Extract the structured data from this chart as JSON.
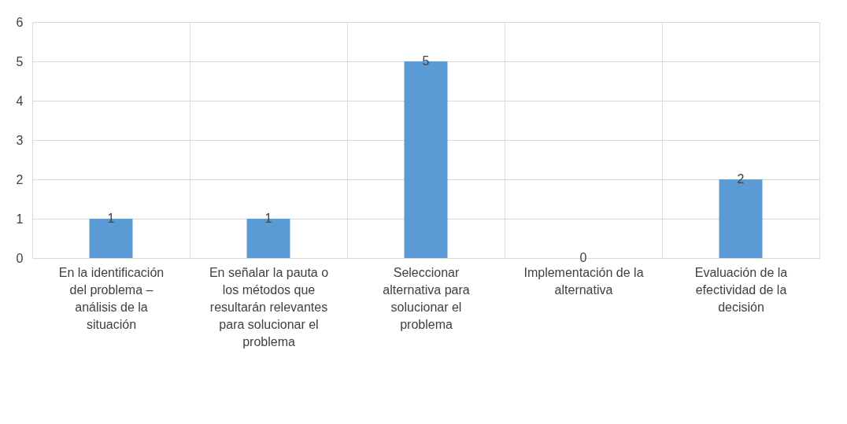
{
  "chart_data": {
    "type": "bar",
    "categories": [
      "En la identificación del problema – análisis de la situación",
      "En señalar la pauta o los métodos que resultarán relevantes para solucionar el problema",
      "Seleccionar alternativa para solucionar el problema",
      "Implementación de la alternativa",
      "Evaluación de la efectividad de la decisión"
    ],
    "values": [
      1,
      1,
      5,
      0,
      2
    ],
    "color": "#5b9bd5",
    "ylim": [
      0,
      6
    ],
    "yticks": [
      0,
      1,
      2,
      3,
      4,
      5,
      6
    ],
    "grid": true,
    "data_labels": true
  }
}
